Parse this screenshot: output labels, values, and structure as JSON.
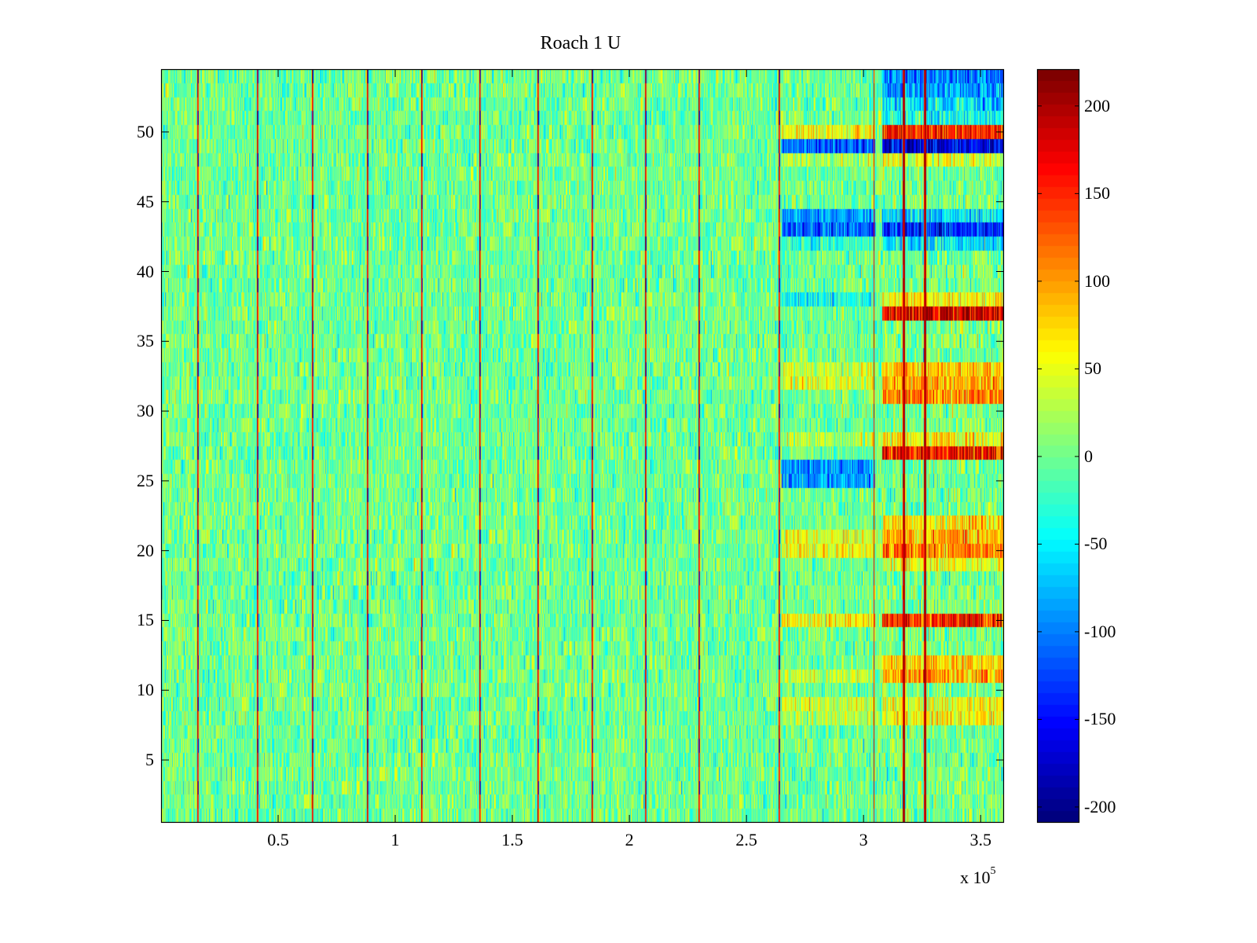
{
  "chart_data": {
    "type": "heatmap",
    "title": "Roach 1 U",
    "xlabel": "",
    "ylabel": "",
    "x_multiplier_label": "x 10",
    "x_multiplier_exponent": "5",
    "xlim": [
      0,
      3.6
    ],
    "ylim": [
      0.5,
      54.5
    ],
    "rows": 54,
    "x_ticks": [
      0.5,
      1,
      1.5,
      2,
      2.5,
      3,
      3.5
    ],
    "x_tick_labels": [
      "0.5",
      "1",
      "1.5",
      "2",
      "2.5",
      "3",
      "3.5"
    ],
    "y_ticks": [
      5,
      10,
      15,
      20,
      25,
      30,
      35,
      40,
      45,
      50
    ],
    "y_tick_labels": [
      "5",
      "10",
      "15",
      "20",
      "25",
      "30",
      "35",
      "40",
      "45",
      "50"
    ],
    "colormap": "jet",
    "clim": [
      -209,
      221
    ],
    "colorbar_ticks": [
      200,
      150,
      100,
      50,
      0,
      -50,
      -100,
      -150,
      -200
    ],
    "colorbar_tick_labels": [
      "200",
      "150",
      "100",
      "50",
      "0",
      "-50",
      "-100",
      "-150",
      "-200"
    ],
    "background_noise": {
      "mean": 0,
      "sd": 28
    },
    "vertical_artifacts_x": [
      0.154,
      0.409,
      0.644,
      0.879,
      1.11,
      1.359,
      1.607,
      1.839,
      2.067,
      2.295,
      2.638,
      3.044,
      3.168,
      3.258
    ],
    "region_row_bias": [
      {
        "x_range": [
          2.65,
          3.05
        ],
        "rows": {
          "50": 60,
          "49": -110,
          "48": 20,
          "44": -90,
          "43": -110,
          "42": -30,
          "38": -40,
          "33": 40,
          "32": 45,
          "28": 30,
          "26": -90,
          "25": -80,
          "21": 50,
          "20": 55,
          "15": 60,
          "11": 35,
          "9": 40,
          "8": 30
        }
      },
      {
        "x_range": [
          3.08,
          3.6
        ],
        "rows": {
          "54": -100,
          "53": -90,
          "52": -60,
          "51": -40,
          "50": 150,
          "49": -170,
          "48": 40,
          "44": -60,
          "43": -140,
          "42": -60,
          "38": 60,
          "37": 180,
          "33": 80,
          "32": 90,
          "31": 110,
          "28": 60,
          "27": 160,
          "22": 60,
          "21": 90,
          "20": 110,
          "19": 50,
          "15": 150,
          "12": 80,
          "11": 90,
          "9": 50,
          "8": 55
        }
      }
    ]
  }
}
